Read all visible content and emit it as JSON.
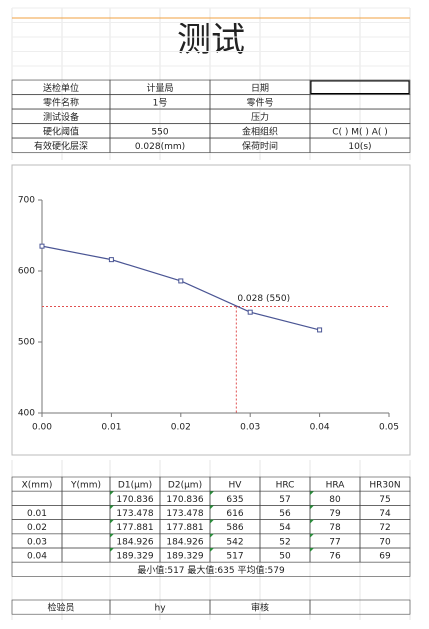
{
  "header": {
    "title": "测试"
  },
  "info": {
    "rows": [
      [
        "送检单位",
        "计量局",
        "日期",
        null
      ],
      [
        "零件名称",
        "1号",
        "零件号",
        null
      ],
      [
        "测试设备",
        null,
        "压力",
        null
      ],
      [
        "硬化阈值",
        "550",
        "金相组织",
        "C(  )  M(  )  A(  )"
      ],
      [
        "有效硬化层深",
        "0.028(mm)",
        "保荷时间",
        "10(s)"
      ]
    ]
  },
  "chart_data": {
    "type": "line",
    "x": [
      0,
      0.01,
      0.02,
      0.03,
      0.04
    ],
    "series": [
      {
        "color": "#4a5594",
        "values": [
          635,
          616,
          586,
          542,
          517
        ]
      }
    ],
    "xlim": [
      0,
      0.05
    ],
    "ylim": [
      400,
      700
    ],
    "xticks": [
      {
        "value": 0,
        "label": "0.00"
      },
      0.01,
      0.02,
      0.03,
      0.04,
      0.05
    ],
    "yticks": [
      400,
      500,
      600,
      700
    ],
    "annotation": {
      "text": "0.028 (550)",
      "x": 0.028,
      "y": 550,
      "color": "#e05050"
    }
  },
  "table": {
    "columns": [
      "X(mm)",
      "Y(mm)",
      "D1(μm)",
      "D2(μm)",
      "HV",
      "HRC",
      "HRA",
      "HR30N"
    ],
    "rows": [
      [
        null,
        null,
        "170.836",
        "170.836",
        "635",
        "57",
        "80",
        "75"
      ],
      [
        "0.01",
        null,
        "173.478",
        "173.478",
        "616",
        "56",
        "79",
        "74"
      ],
      [
        "0.02",
        null,
        "177.881",
        "177.881",
        "586",
        "54",
        "78",
        "72"
      ],
      [
        "0.03",
        null,
        "184.926",
        "184.926",
        "542",
        "52",
        "77",
        "70"
      ],
      [
        "0.04",
        null,
        "189.329",
        "189.329",
        "517",
        "50",
        "76",
        "69"
      ]
    ],
    "summary": "最小值:517  最大值:635  平均值:579"
  },
  "footer": {
    "cells": [
      "检验员",
      "hy",
      "审核",
      null
    ]
  }
}
